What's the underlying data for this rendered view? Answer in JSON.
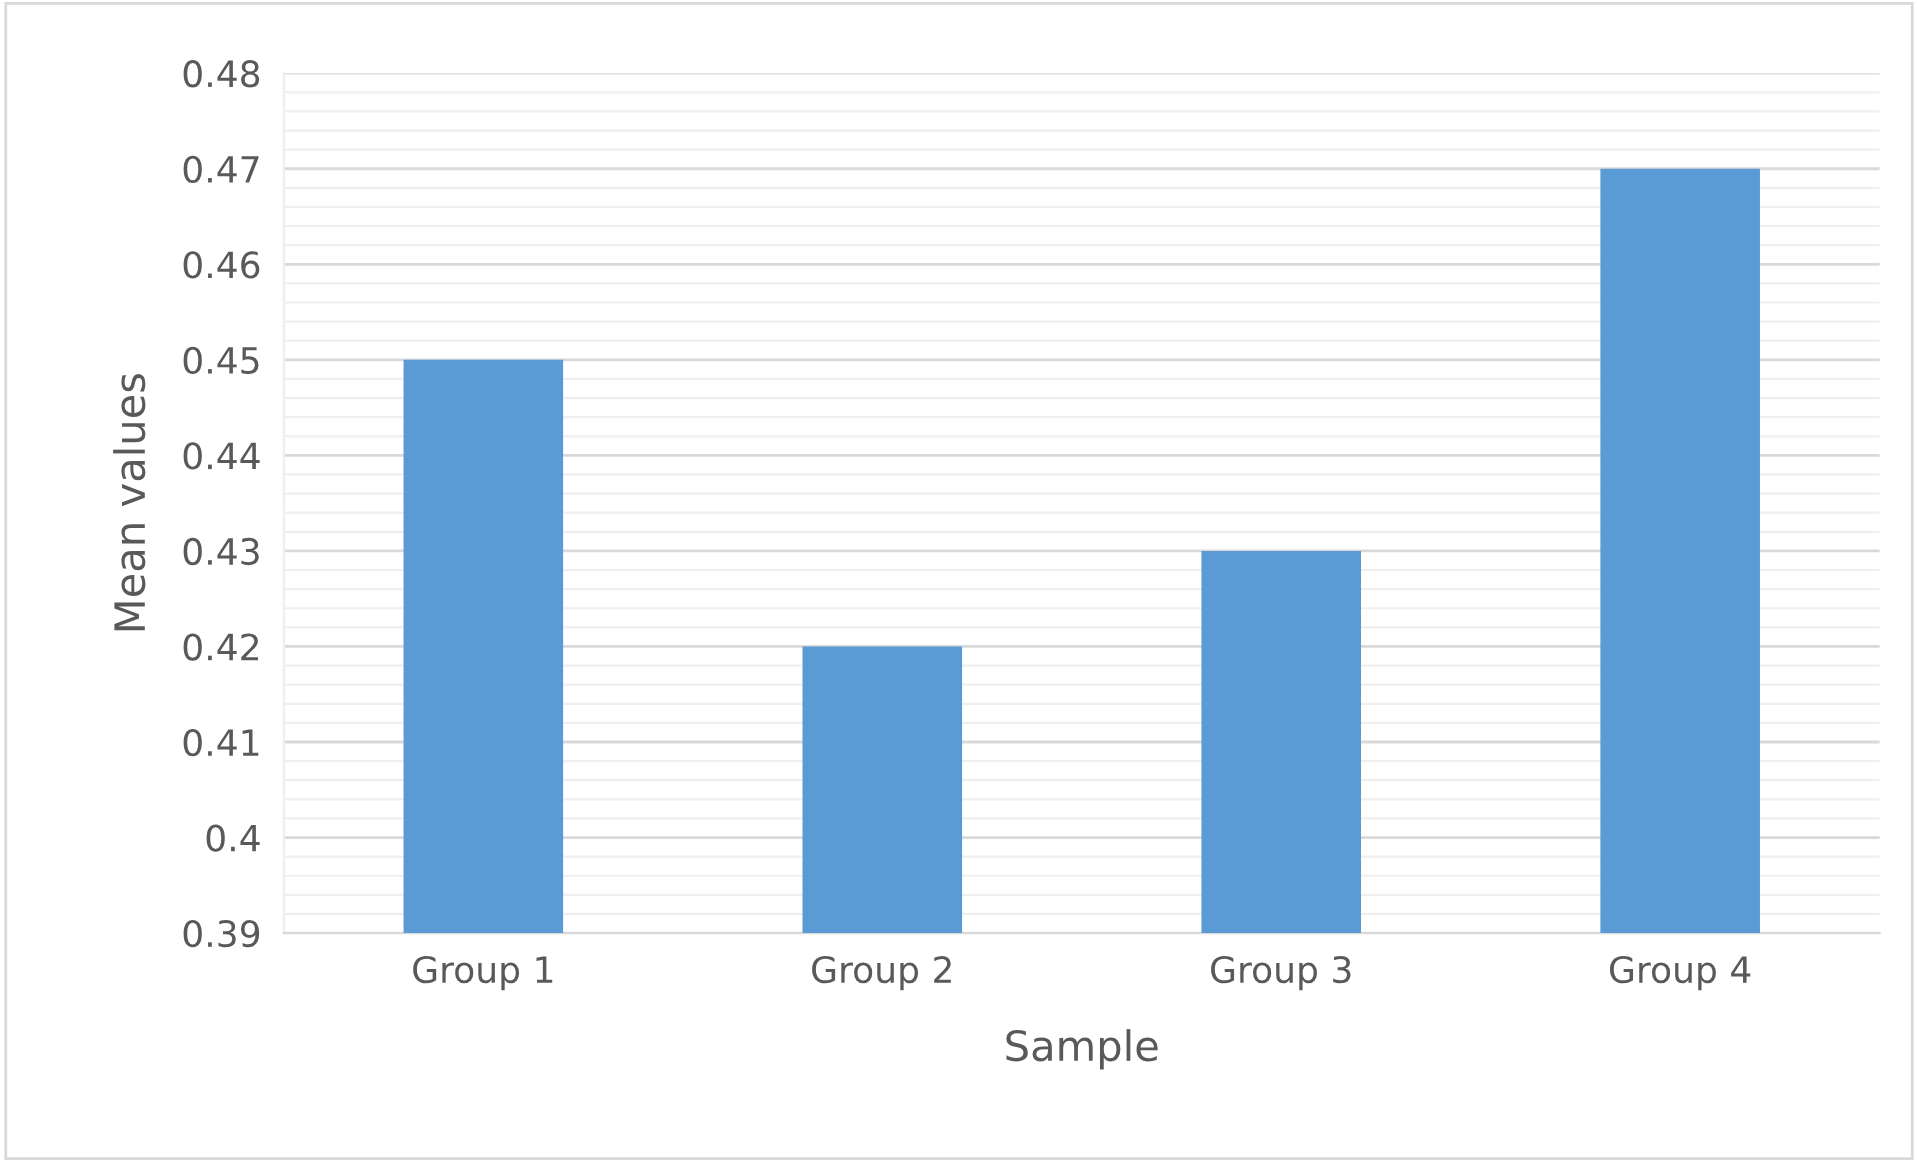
{
  "chart_data": {
    "type": "bar",
    "xlabel": "Sample",
    "ylabel": "Mean values",
    "categories": [
      "Group 1",
      "Group 2",
      "Group 3",
      "Group 4"
    ],
    "values": [
      0.45,
      0.42,
      0.43,
      0.47
    ],
    "color": "#5b9bd5",
    "ylim": [
      0.39,
      0.48
    ],
    "yticks": [
      0.39,
      {
        "value": 0.4,
        "label": "0.4"
      },
      0.41,
      0.42,
      0.43,
      0.44,
      0.45,
      0.46,
      0.47,
      0.48
    ],
    "grid": "y"
  }
}
